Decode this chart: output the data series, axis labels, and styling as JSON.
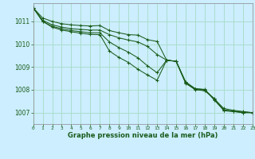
{
  "background_color": "#cceeff",
  "grid_color": "#aaddcc",
  "line_color": "#1a5c1a",
  "xlabel": "Graphe pression niveau de la mer (hPa)",
  "ylim": [
    1006.5,
    1011.8
  ],
  "yticks": [
    1007,
    1008,
    1009,
    1010,
    1011
  ],
  "xlim": [
    0,
    23
  ],
  "xticks": [
    0,
    1,
    2,
    3,
    4,
    5,
    6,
    7,
    8,
    9,
    10,
    11,
    12,
    13,
    14,
    15,
    16,
    17,
    18,
    19,
    20,
    21,
    22,
    23
  ],
  "series": [
    [
      1011.6,
      1011.15,
      1011.0,
      1010.9,
      1010.85,
      1010.82,
      1010.8,
      1010.82,
      1010.6,
      1010.5,
      1010.42,
      1010.4,
      1010.2,
      1010.12,
      1009.3,
      1009.25,
      1008.3,
      1008.05,
      1008.02,
      1007.55,
      1007.1,
      1007.05,
      1007.0,
      1007.0
    ],
    [
      1011.6,
      1011.05,
      1010.85,
      1010.75,
      1010.68,
      1010.65,
      1010.62,
      1010.62,
      1010.42,
      1010.28,
      1010.18,
      1010.1,
      1009.9,
      1009.55,
      1009.3,
      1009.25,
      1008.35,
      1008.05,
      1008.0,
      1007.58,
      1007.12,
      1007.07,
      1007.02,
      1007.0
    ],
    [
      1011.6,
      1011.0,
      1010.78,
      1010.68,
      1010.6,
      1010.55,
      1010.5,
      1010.5,
      1010.1,
      1009.85,
      1009.65,
      1009.4,
      1009.05,
      1008.75,
      1009.3,
      1009.25,
      1008.3,
      1008.0,
      1008.0,
      1007.6,
      1007.18,
      1007.1,
      1007.05,
      1007.0
    ],
    [
      1011.6,
      1011.0,
      1010.75,
      1010.62,
      1010.55,
      1010.48,
      1010.43,
      1010.42,
      1009.7,
      1009.42,
      1009.2,
      1008.9,
      1008.65,
      1008.42,
      1009.3,
      1009.25,
      1008.28,
      1008.02,
      1007.95,
      1007.62,
      1007.08,
      1007.05,
      1007.0,
      1007.0
    ]
  ]
}
